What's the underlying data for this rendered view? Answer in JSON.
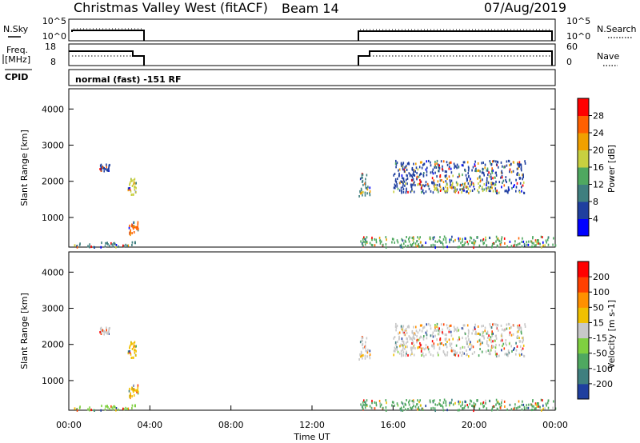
{
  "header": {
    "title": "Christmas Valley West (fitACF)",
    "beam": "Beam 14",
    "date": "07/Aug/2019"
  },
  "status_panels": {
    "nsky_label": "N.Sky",
    "nsky_ticks": [
      "10^5",
      "10^0"
    ],
    "nsearch_label": "N.Search",
    "nsearch_ticks": [
      "10^5",
      "10^0"
    ],
    "freq_label_1": "Freq.",
    "freq_label_2": "[MHz]",
    "freq_ticks": [
      "18",
      "8"
    ],
    "nave_label": "Nave",
    "nave_ticks": [
      "60",
      "0"
    ],
    "cpid_label": "CPID",
    "cpid_text": "normal (fast) -151 RF"
  },
  "chart_data": [
    {
      "type": "heatmap",
      "name": "power",
      "ylabel": "Slant Range [km]",
      "ylim": [
        180,
        4560
      ],
      "yticks": [
        "1000",
        "2000",
        "3000",
        "4000"
      ],
      "xlim": [
        0,
        24
      ],
      "colorbar_label": "Power [dB]",
      "colorbar_ticks": [
        "4",
        "8",
        "12",
        "16",
        "20",
        "24",
        "28"
      ],
      "colorbar_colors": [
        "#0000ff",
        "#1f3f9f",
        "#3f7f7f",
        "#4fa860",
        "#c8d040",
        "#f0a000",
        "#ff6000",
        "#ff0000"
      ],
      "regions": [
        {
          "t0": 0.1,
          "t1": 3.4,
          "r0": 200,
          "r1": 350,
          "color": "#3f7f7f"
        },
        {
          "t0": 2.9,
          "t1": 3.4,
          "r0": 550,
          "r1": 900,
          "color": "#ff6000"
        },
        {
          "t0": 2.9,
          "t1": 3.3,
          "r0": 1650,
          "r1": 2100,
          "color": "#c8d040"
        },
        {
          "t0": 1.5,
          "t1": 2.0,
          "r0": 2300,
          "r1": 2500,
          "color": "#1f3f9f"
        },
        {
          "t0": 14.3,
          "t1": 24.0,
          "r0": 200,
          "r1": 500,
          "color": "#4fa860"
        },
        {
          "t0": 14.3,
          "t1": 14.9,
          "r0": 1600,
          "r1": 2300,
          "color": "#3f7f7f"
        },
        {
          "t0": 16.0,
          "t1": 22.5,
          "r0": 1700,
          "r1": 2600,
          "color": "#1f3f9f"
        },
        {
          "t0": 18.0,
          "t1": 21.0,
          "r0": 1750,
          "r1": 2000,
          "color": "#c8d040"
        }
      ]
    },
    {
      "type": "heatmap",
      "name": "velocity",
      "ylabel": "Slant Range [km]",
      "ylim": [
        180,
        4560
      ],
      "yticks": [
        "1000",
        "2000",
        "3000",
        "4000"
      ],
      "xlim": [
        0,
        24
      ],
      "xticks": [
        "00:00",
        "04:00",
        "08:00",
        "12:00",
        "16:00",
        "20:00",
        "00:00"
      ],
      "xlabel": "Time UT",
      "colorbar_label": "Velocity [m s-1]",
      "colorbar_ticks": [
        "200",
        "100",
        "50",
        "15",
        "-15",
        "-50",
        "-100",
        "-200"
      ],
      "colorbar_colors": [
        "#1f3f9f",
        "#3f7f7f",
        "#4fa860",
        "#7fd040",
        "#c8c8c8",
        "#f0c000",
        "#ff9000",
        "#ff4000",
        "#ff0000"
      ],
      "regions": [
        {
          "t0": 0.1,
          "t1": 3.4,
          "r0": 200,
          "r1": 350,
          "color": "#7fd040"
        },
        {
          "t0": 2.9,
          "t1": 3.4,
          "r0": 550,
          "r1": 900,
          "color": "#f0c000"
        },
        {
          "t0": 2.9,
          "t1": 3.3,
          "r0": 1650,
          "r1": 2100,
          "color": "#f0c000"
        },
        {
          "t0": 1.5,
          "t1": 2.0,
          "r0": 2300,
          "r1": 2500,
          "color": "#c8c8c8"
        },
        {
          "t0": 14.3,
          "t1": 24.0,
          "r0": 200,
          "r1": 500,
          "color": "#4fa860"
        },
        {
          "t0": 14.3,
          "t1": 14.9,
          "r0": 1600,
          "r1": 2300,
          "color": "#c8c8c8"
        },
        {
          "t0": 16.0,
          "t1": 22.5,
          "r0": 1700,
          "r1": 2600,
          "color": "#c8c8c8"
        }
      ]
    }
  ]
}
